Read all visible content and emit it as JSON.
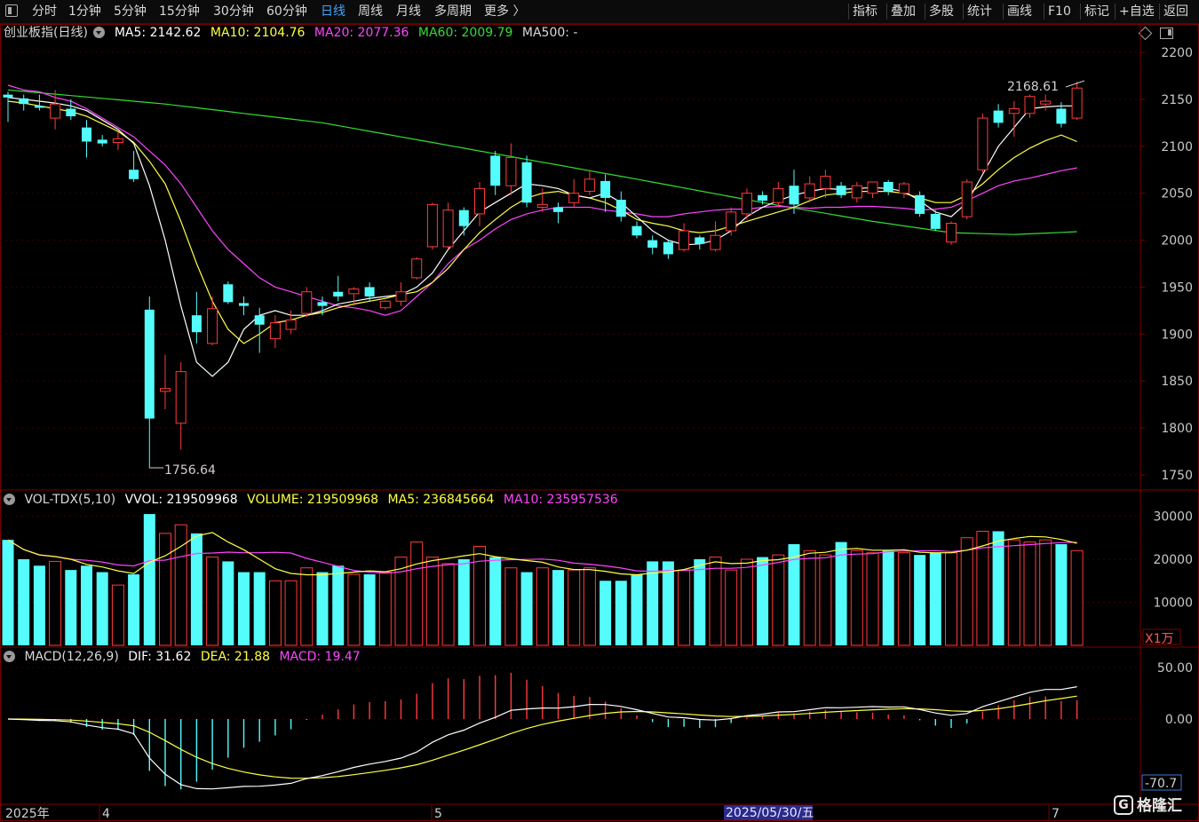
{
  "toolbar": {
    "left_items": [
      "分时",
      "1分钟",
      "5分钟",
      "15分钟",
      "30分钟",
      "60分钟",
      "日线",
      "周线",
      "月线",
      "多周期",
      "更多 〉"
    ],
    "active_item": "日线",
    "right_items": [
      "指标",
      "叠加",
      "多股",
      "统计",
      "画线",
      "F10",
      "标记",
      "+自选",
      "返回"
    ]
  },
  "price_panel": {
    "title": "创业板指(日线)",
    "ma5": "MA5: 2142.62",
    "ma10": "MA10: 2104.76",
    "ma20": "MA20: 2077.36",
    "ma60": "MA60: 2009.79",
    "ma500": "MA500: -",
    "high_label": "2168.61",
    "low_label": "1756.64",
    "y_ticks": [
      "2200",
      "2150",
      "2100",
      "2050",
      "2000",
      "1950",
      "1900",
      "1850",
      "1800",
      "1750"
    ]
  },
  "volume_panel": {
    "title": "VOL-TDX(5,10)",
    "vvol": "VVOL: 219509968",
    "volume": "VOLUME: 219509968",
    "ma5": "MA5: 236845664",
    "ma10": "MA10: 235957536",
    "y_ticks": [
      "30000",
      "20000",
      "10000"
    ],
    "unit": "X1万"
  },
  "macd_panel": {
    "title": "MACD(12,26,9)",
    "dif": "DIF: 31.62",
    "dea": "DEA: 21.88",
    "macd": "MACD: 19.47",
    "y_ticks": [
      "50.00",
      "0.00"
    ],
    "min_label": "-70.7"
  },
  "time_axis": {
    "year": "2025年",
    "months": [
      "4",
      "5",
      "7"
    ],
    "cursor": "2025/05/30/五"
  },
  "watermark": "格隆汇",
  "colors": {
    "up": "#ff3b3b",
    "down": "#54fcfc",
    "ma5": "#ffffff",
    "ma10": "#ffff44",
    "ma20": "#ff44ff",
    "ma60": "#33dd33",
    "frame": "#7a0000",
    "active": "#43a6ff"
  },
  "chart_data": {
    "type": "candlestick",
    "note_units": "index points; volume in 万",
    "candles": [
      {
        "o": 2155,
        "h": 2158,
        "l": 2126,
        "c": 2152
      },
      {
        "o": 2151,
        "h": 2155,
        "l": 2138,
        "c": 2145
      },
      {
        "o": 2143,
        "h": 2155,
        "l": 2138,
        "c": 2141
      },
      {
        "o": 2130,
        "h": 2160,
        "l": 2118,
        "c": 2145
      },
      {
        "o": 2140,
        "h": 2150,
        "l": 2128,
        "c": 2132
      },
      {
        "o": 2120,
        "h": 2128,
        "l": 2088,
        "c": 2105
      },
      {
        "o": 2107,
        "h": 2112,
        "l": 2100,
        "c": 2103
      },
      {
        "o": 2104,
        "h": 2115,
        "l": 2096,
        "c": 2108
      },
      {
        "o": 2075,
        "h": 2095,
        "l": 2062,
        "c": 2065
      },
      {
        "o": 1926,
        "h": 1940,
        "l": 1757,
        "c": 1810
      },
      {
        "o": 1839,
        "h": 1878,
        "l": 1820,
        "c": 1842
      },
      {
        "o": 1805,
        "h": 1870,
        "l": 1777,
        "c": 1860
      },
      {
        "o": 1920,
        "h": 1945,
        "l": 1890,
        "c": 1902
      },
      {
        "o": 1890,
        "h": 1940,
        "l": 1888,
        "c": 1927
      },
      {
        "o": 1953,
        "h": 1956,
        "l": 1932,
        "c": 1934
      },
      {
        "o": 1933,
        "h": 1940,
        "l": 1920,
        "c": 1930
      },
      {
        "o": 1920,
        "h": 1928,
        "l": 1880,
        "c": 1910
      },
      {
        "o": 1895,
        "h": 1920,
        "l": 1885,
        "c": 1912
      },
      {
        "o": 1905,
        "h": 1925,
        "l": 1900,
        "c": 1915
      },
      {
        "o": 1922,
        "h": 1950,
        "l": 1918,
        "c": 1945
      },
      {
        "o": 1934,
        "h": 1940,
        "l": 1920,
        "c": 1930
      },
      {
        "o": 1945,
        "h": 1962,
        "l": 1935,
        "c": 1940
      },
      {
        "o": 1943,
        "h": 1950,
        "l": 1930,
        "c": 1948
      },
      {
        "o": 1950,
        "h": 1955,
        "l": 1935,
        "c": 1940
      },
      {
        "o": 1928,
        "h": 1936,
        "l": 1926,
        "c": 1935
      },
      {
        "o": 1935,
        "h": 1955,
        "l": 1930,
        "c": 1945
      },
      {
        "o": 1960,
        "h": 1982,
        "l": 1958,
        "c": 1980
      },
      {
        "o": 1993,
        "h": 2040,
        "l": 1990,
        "c": 2038
      },
      {
        "o": 1993,
        "h": 2040,
        "l": 1990,
        "c": 2032
      },
      {
        "o": 2032,
        "h": 2035,
        "l": 2005,
        "c": 2015
      },
      {
        "o": 2028,
        "h": 2062,
        "l": 2015,
        "c": 2055
      },
      {
        "o": 2090,
        "h": 2095,
        "l": 2048,
        "c": 2058
      },
      {
        "o": 2058,
        "h": 2103,
        "l": 2048,
        "c": 2088
      },
      {
        "o": 2083,
        "h": 2090,
        "l": 2035,
        "c": 2040
      },
      {
        "o": 2035,
        "h": 2055,
        "l": 2030,
        "c": 2038
      },
      {
        "o": 2035,
        "h": 2040,
        "l": 2018,
        "c": 2030
      },
      {
        "o": 2040,
        "h": 2065,
        "l": 2035,
        "c": 2050
      },
      {
        "o": 2052,
        "h": 2075,
        "l": 2048,
        "c": 2065
      },
      {
        "o": 2063,
        "h": 2070,
        "l": 2030,
        "c": 2045
      },
      {
        "o": 2043,
        "h": 2052,
        "l": 2020,
        "c": 2025
      },
      {
        "o": 2015,
        "h": 2020,
        "l": 2002,
        "c": 2005
      },
      {
        "o": 2000,
        "h": 2005,
        "l": 1985,
        "c": 1992
      },
      {
        "o": 1998,
        "h": 2000,
        "l": 1980,
        "c": 1985
      },
      {
        "o": 1990,
        "h": 2018,
        "l": 1988,
        "c": 2010
      },
      {
        "o": 2003,
        "h": 2005,
        "l": 1990,
        "c": 1996
      },
      {
        "o": 1990,
        "h": 2020,
        "l": 1988,
        "c": 2005
      },
      {
        "o": 2010,
        "h": 2035,
        "l": 2005,
        "c": 2030
      },
      {
        "o": 2028,
        "h": 2055,
        "l": 2022,
        "c": 2050
      },
      {
        "o": 2048,
        "h": 2052,
        "l": 2038,
        "c": 2042
      },
      {
        "o": 2040,
        "h": 2062,
        "l": 2035,
        "c": 2055
      },
      {
        "o": 2058,
        "h": 2075,
        "l": 2028,
        "c": 2038
      },
      {
        "o": 2045,
        "h": 2068,
        "l": 2040,
        "c": 2060
      },
      {
        "o": 2055,
        "h": 2075,
        "l": 2045,
        "c": 2068
      },
      {
        "o": 2058,
        "h": 2062,
        "l": 2045,
        "c": 2048
      },
      {
        "o": 2045,
        "h": 2062,
        "l": 2040,
        "c": 2058
      },
      {
        "o": 2050,
        "h": 2062,
        "l": 2045,
        "c": 2062
      },
      {
        "o": 2062,
        "h": 2064,
        "l": 2048,
        "c": 2052
      },
      {
        "o": 2050,
        "h": 2062,
        "l": 2045,
        "c": 2060
      },
      {
        "o": 2048,
        "h": 2052,
        "l": 2025,
        "c": 2028
      },
      {
        "o": 2028,
        "h": 2032,
        "l": 2010,
        "c": 2012
      },
      {
        "o": 1998,
        "h": 2020,
        "l": 1995,
        "c": 2018
      },
      {
        "o": 2025,
        "h": 2065,
        "l": 2022,
        "c": 2062
      },
      {
        "o": 2075,
        "h": 2135,
        "l": 2072,
        "c": 2130
      },
      {
        "o": 2138,
        "h": 2145,
        "l": 2120,
        "c": 2125
      },
      {
        "o": 2135,
        "h": 2148,
        "l": 2110,
        "c": 2140
      },
      {
        "o": 2135,
        "h": 2155,
        "l": 2130,
        "c": 2153
      },
      {
        "o": 2145,
        "h": 2155,
        "l": 2138,
        "c": 2148
      },
      {
        "o": 2140,
        "h": 2147,
        "l": 2120,
        "c": 2124
      },
      {
        "o": 2130,
        "h": 2169,
        "l": 2128,
        "c": 2162
      }
    ],
    "volume": [
      24500,
      20000,
      18500,
      19500,
      17500,
      18500,
      17000,
      14000,
      16500,
      30500,
      26000,
      28000,
      26000,
      20500,
      19500,
      17000,
      17000,
      15000,
      15000,
      18000,
      17000,
      18500,
      16500,
      16500,
      17000,
      20500,
      24000,
      20500,
      19000,
      20000,
      23000,
      20500,
      18000,
      17000,
      18000,
      17500,
      17500,
      18000,
      15000,
      15000,
      16500,
      19500,
      19500,
      17500,
      20000,
      20500,
      17500,
      20000,
      20500,
      21000,
      23500,
      22000,
      21000,
      24000,
      22000,
      21500,
      22000,
      21500,
      21000,
      21500,
      21500,
      25000,
      26500,
      26500,
      24500,
      24000,
      24500,
      23500,
      22000
    ],
    "ma5": [
      2152,
      2150,
      2148,
      2146,
      2143,
      2138,
      2128,
      2118,
      2103,
      2058,
      2000,
      1930,
      1870,
      1855,
      1870,
      1905,
      1920,
      1925,
      1920,
      1920,
      1925,
      1932,
      1935,
      1938,
      1940,
      1942,
      1950,
      1965,
      1990,
      2010,
      2030,
      2040,
      2050,
      2060,
      2058,
      2055,
      2048,
      2045,
      2050,
      2040,
      2025,
      2010,
      2000,
      1995,
      1996,
      2000,
      2010,
      2025,
      2035,
      2042,
      2048,
      2052,
      2055,
      2054,
      2055,
      2056,
      2055,
      2052,
      2042,
      2030,
      2025,
      2040,
      2070,
      2100,
      2120,
      2140,
      2142,
      2143,
      2143
    ],
    "ma10": [
      2148,
      2146,
      2143,
      2140,
      2137,
      2132,
      2124,
      2116,
      2104,
      2084,
      2060,
      2020,
      1975,
      1935,
      1905,
      1890,
      1900,
      1912,
      1915,
      1920,
      1923,
      1928,
      1932,
      1935,
      1938,
      1942,
      1945,
      1955,
      1970,
      1990,
      2008,
      2022,
      2035,
      2045,
      2050,
      2052,
      2048,
      2045,
      2040,
      2032,
      2022,
      2018,
      2015,
      2010,
      2008,
      2010,
      2015,
      2020,
      2025,
      2030,
      2035,
      2042,
      2048,
      2050,
      2052,
      2052,
      2052,
      2050,
      2045,
      2040,
      2040,
      2048,
      2060,
      2075,
      2088,
      2098,
      2106,
      2112,
      2105
    ],
    "ma20": [
      2165,
      2160,
      2158,
      2152,
      2148,
      2140,
      2130,
      2120,
      2110,
      2095,
      2080,
      2060,
      2035,
      2010,
      1990,
      1975,
      1960,
      1950,
      1945,
      1940,
      1935,
      1930,
      1928,
      1925,
      1920,
      1925,
      1940,
      1955,
      1975,
      1990,
      2000,
      2012,
      2022,
      2028,
      2032,
      2035,
      2035,
      2035,
      2032,
      2030,
      2028,
      2025,
      2025,
      2028,
      2030,
      2032,
      2033,
      2033,
      2035,
      2036,
      2035,
      2034,
      2035,
      2035,
      2036,
      2036,
      2035,
      2034,
      2032,
      2033,
      2035,
      2042,
      2050,
      2058,
      2063,
      2066,
      2070,
      2074,
      2077
    ]
  }
}
